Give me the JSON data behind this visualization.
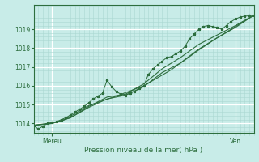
{
  "title": "Pression niveau de la mer( hPa )",
  "bg_color": "#c8ece8",
  "grid_color_major": "#ffffff",
  "grid_color_minor": "#aad8d2",
  "line_color": "#2d6e3e",
  "marker_color": "#2d6e3e",
  "xlim": [
    0,
    48
  ],
  "ylim": [
    1013.5,
    1020.3
  ],
  "yticks": [
    1014,
    1015,
    1016,
    1017,
    1018,
    1019
  ],
  "xlabel_left": "Mereu",
  "xlabel_right": "Ven",
  "x_tick_left": 4,
  "x_tick_right": 44,
  "series": [
    [
      0,
      1013.9
    ],
    [
      1,
      1013.7
    ],
    [
      2,
      1013.85
    ],
    [
      3,
      1014.0
    ],
    [
      4,
      1014.05
    ],
    [
      5,
      1014.1
    ],
    [
      6,
      1014.2
    ],
    [
      7,
      1014.3
    ],
    [
      8,
      1014.45
    ],
    [
      9,
      1014.6
    ],
    [
      10,
      1014.75
    ],
    [
      11,
      1014.9
    ],
    [
      12,
      1015.1
    ],
    [
      13,
      1015.3
    ],
    [
      14,
      1015.45
    ],
    [
      15,
      1015.6
    ],
    [
      16,
      1016.3
    ],
    [
      17,
      1015.95
    ],
    [
      18,
      1015.7
    ],
    [
      19,
      1015.55
    ],
    [
      20,
      1015.5
    ],
    [
      21,
      1015.6
    ],
    [
      22,
      1015.7
    ],
    [
      23,
      1015.85
    ],
    [
      24,
      1016.0
    ],
    [
      25,
      1016.6
    ],
    [
      26,
      1016.9
    ],
    [
      27,
      1017.1
    ],
    [
      28,
      1017.3
    ],
    [
      29,
      1017.5
    ],
    [
      30,
      1017.55
    ],
    [
      31,
      1017.7
    ],
    [
      32,
      1017.85
    ],
    [
      33,
      1018.1
    ],
    [
      34,
      1018.5
    ],
    [
      35,
      1018.75
    ],
    [
      36,
      1019.0
    ],
    [
      37,
      1019.15
    ],
    [
      38,
      1019.2
    ],
    [
      39,
      1019.15
    ],
    [
      40,
      1019.1
    ],
    [
      41,
      1019.0
    ],
    [
      42,
      1019.2
    ],
    [
      43,
      1019.4
    ],
    [
      44,
      1019.55
    ],
    [
      45,
      1019.65
    ],
    [
      46,
      1019.7
    ],
    [
      47,
      1019.72
    ],
    [
      48,
      1019.75
    ]
  ],
  "series2": [
    [
      0,
      1013.9
    ],
    [
      4,
      1014.0
    ],
    [
      8,
      1014.3
    ],
    [
      12,
      1014.85
    ],
    [
      16,
      1015.3
    ],
    [
      20,
      1015.5
    ],
    [
      24,
      1015.95
    ],
    [
      28,
      1016.7
    ],
    [
      32,
      1017.2
    ],
    [
      36,
      1017.9
    ],
    [
      40,
      1018.55
    ],
    [
      44,
      1019.1
    ],
    [
      48,
      1019.75
    ]
  ],
  "series3": [
    [
      0,
      1013.9
    ],
    [
      4,
      1014.0
    ],
    [
      8,
      1014.3
    ],
    [
      12,
      1014.9
    ],
    [
      16,
      1015.4
    ],
    [
      20,
      1015.55
    ],
    [
      24,
      1016.1
    ],
    [
      28,
      1016.9
    ],
    [
      32,
      1017.5
    ],
    [
      36,
      1018.2
    ],
    [
      40,
      1018.7
    ],
    [
      44,
      1019.2
    ],
    [
      48,
      1019.75
    ]
  ],
  "series4": [
    [
      0,
      1013.9
    ],
    [
      6,
      1014.1
    ],
    [
      12,
      1014.95
    ],
    [
      18,
      1015.45
    ],
    [
      24,
      1016.0
    ],
    [
      30,
      1016.85
    ],
    [
      36,
      1017.95
    ],
    [
      42,
      1018.85
    ],
    [
      48,
      1019.75
    ]
  ]
}
